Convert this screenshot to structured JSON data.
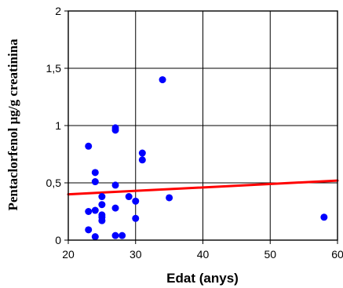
{
  "chart_data": {
    "type": "scatter",
    "xlabel": "Edat (anys)",
    "ylabel": "Pentaclorfenol µg/g creatinina",
    "xlim": [
      20,
      60
    ],
    "ylim": [
      0,
      2
    ],
    "xticks": [
      20,
      30,
      40,
      50,
      60
    ],
    "yticks": [
      0,
      0.5,
      1,
      1.5,
      2
    ],
    "xtick_labels": [
      "20",
      "30",
      "40",
      "50",
      "60"
    ],
    "ytick_labels": [
      "0",
      "0,5",
      "1",
      "1,5",
      "2"
    ],
    "grid": true,
    "points": [
      {
        "x": 23,
        "y": 0.82
      },
      {
        "x": 23,
        "y": 0.25
      },
      {
        "x": 23,
        "y": 0.09
      },
      {
        "x": 24,
        "y": 0.59
      },
      {
        "x": 24,
        "y": 0.51
      },
      {
        "x": 24,
        "y": 0.26
      },
      {
        "x": 24,
        "y": 0.03
      },
      {
        "x": 25,
        "y": 0.38
      },
      {
        "x": 25,
        "y": 0.31
      },
      {
        "x": 25,
        "y": 0.22
      },
      {
        "x": 25,
        "y": 0.2
      },
      {
        "x": 25,
        "y": 0.17
      },
      {
        "x": 27,
        "y": 0.98
      },
      {
        "x": 27,
        "y": 0.96
      },
      {
        "x": 27,
        "y": 0.48
      },
      {
        "x": 27,
        "y": 0.28
      },
      {
        "x": 27,
        "y": 0.04
      },
      {
        "x": 28,
        "y": 0.04
      },
      {
        "x": 29,
        "y": 0.38
      },
      {
        "x": 30,
        "y": 0.34
      },
      {
        "x": 30,
        "y": 0.19
      },
      {
        "x": 31,
        "y": 0.76
      },
      {
        "x": 31,
        "y": 0.7
      },
      {
        "x": 34,
        "y": 1.4
      },
      {
        "x": 35,
        "y": 0.37
      },
      {
        "x": 58,
        "y": 0.2
      }
    ],
    "trendline": {
      "x": [
        20,
        60
      ],
      "y": [
        0.4,
        0.52
      ]
    },
    "point_color": "#0000ff",
    "trendline_color": "#ff0000"
  }
}
